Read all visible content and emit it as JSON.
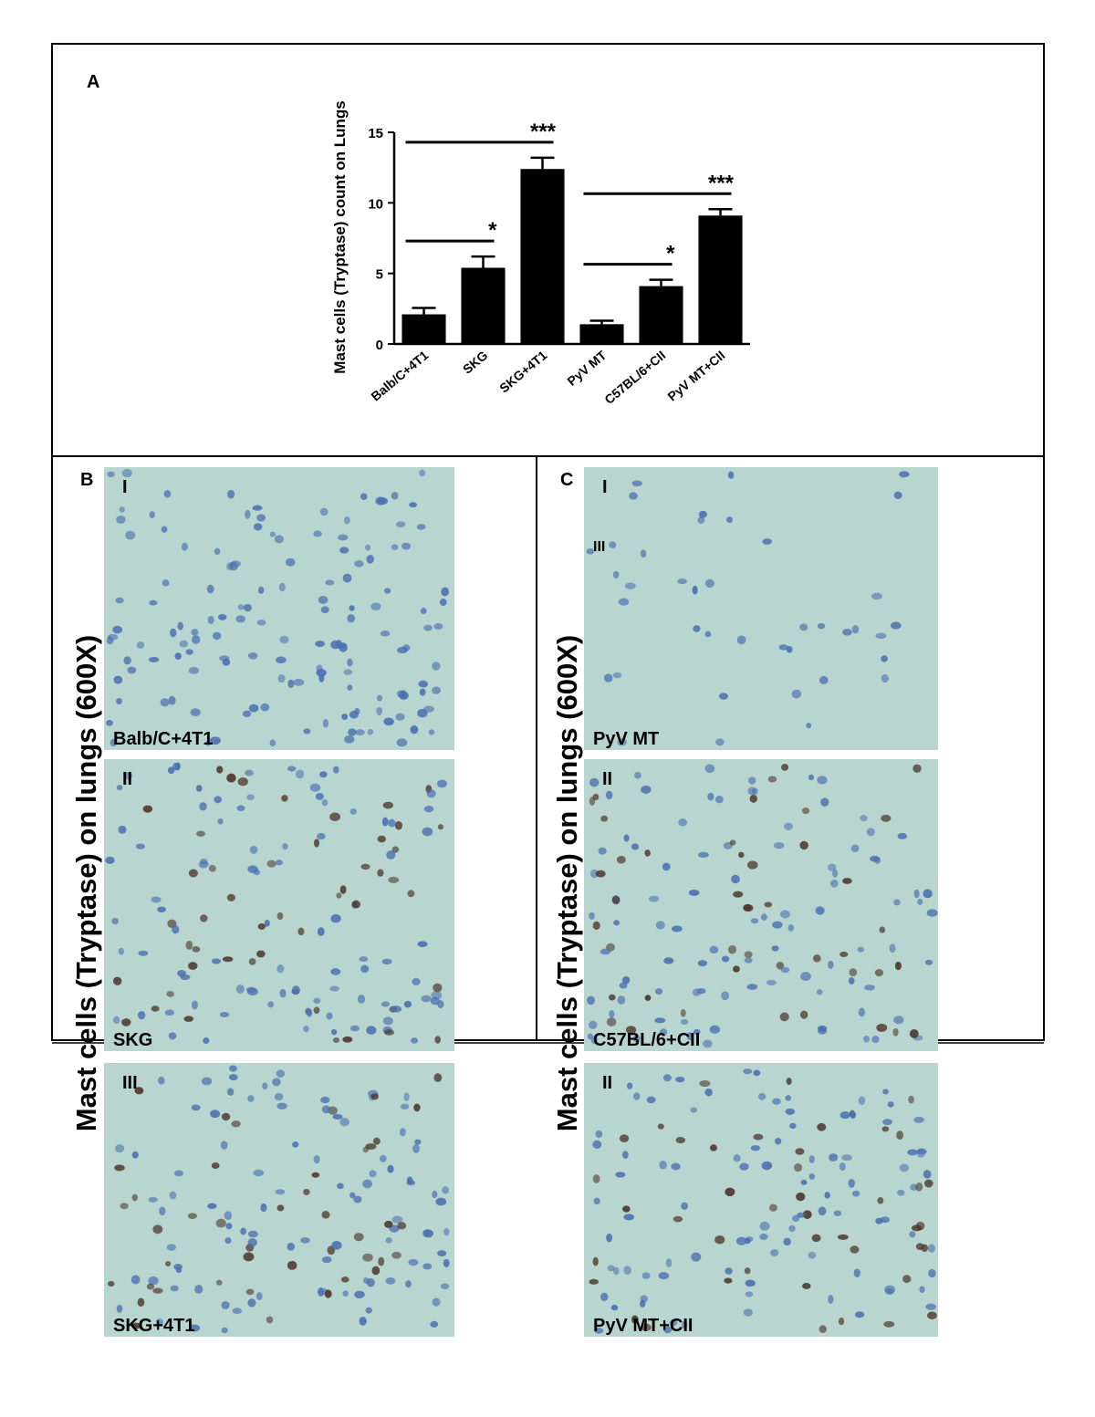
{
  "panel_a": {
    "label": "A"
  },
  "chart_data": {
    "type": "bar",
    "y_label": "Mast cells (Tryptase) count on Lungs",
    "categories": [
      "Balb/C+4T1",
      "SKG",
      "SKG+4T1",
      "PyV MT",
      "C57BL/6+CII",
      "PyV MT+CII"
    ],
    "values": [
      2.1,
      5.4,
      12.4,
      1.4,
      4.1,
      9.1
    ],
    "errors": [
      0.45,
      0.8,
      0.8,
      0.25,
      0.45,
      0.45
    ],
    "color": "#000000",
    "ylim": [
      0,
      15
    ],
    "yticks": [
      0,
      5,
      10,
      15
    ],
    "comparisons": [
      {
        "label": "***",
        "between": [
          "Balb/C+4T1",
          "SKG+4T1"
        ]
      },
      {
        "label": "*",
        "between": [
          "Balb/C+4T1",
          "SKG"
        ]
      },
      {
        "label": "***",
        "between": [
          "PyV MT",
          "PyV MT+CII"
        ]
      },
      {
        "label": "*",
        "between": [
          "PyV MT",
          "C57BL/6+CII"
        ]
      }
    ]
  },
  "panel_b": {
    "label": "B",
    "axis_label": "Mast cells (Tryptase) on lungs (600X)",
    "images": [
      {
        "numerals": [
          "I"
        ],
        "caption": "Balb/C+4T1"
      },
      {
        "numerals": [
          "II"
        ],
        "caption": "SKG"
      },
      {
        "numerals": [
          "III"
        ],
        "caption": "SKG+4T1"
      }
    ]
  },
  "panel_c": {
    "label": "C",
    "axis_label": "Mast cells (Tryptase) on lungs (600X)",
    "images": [
      {
        "numerals": [
          "I",
          "III"
        ],
        "caption": "PyV MT"
      },
      {
        "numerals": [
          "II"
        ],
        "caption": "C57BL/6+CII"
      },
      {
        "numerals": [
          "II"
        ],
        "caption": "PyV MT+CII"
      }
    ]
  }
}
